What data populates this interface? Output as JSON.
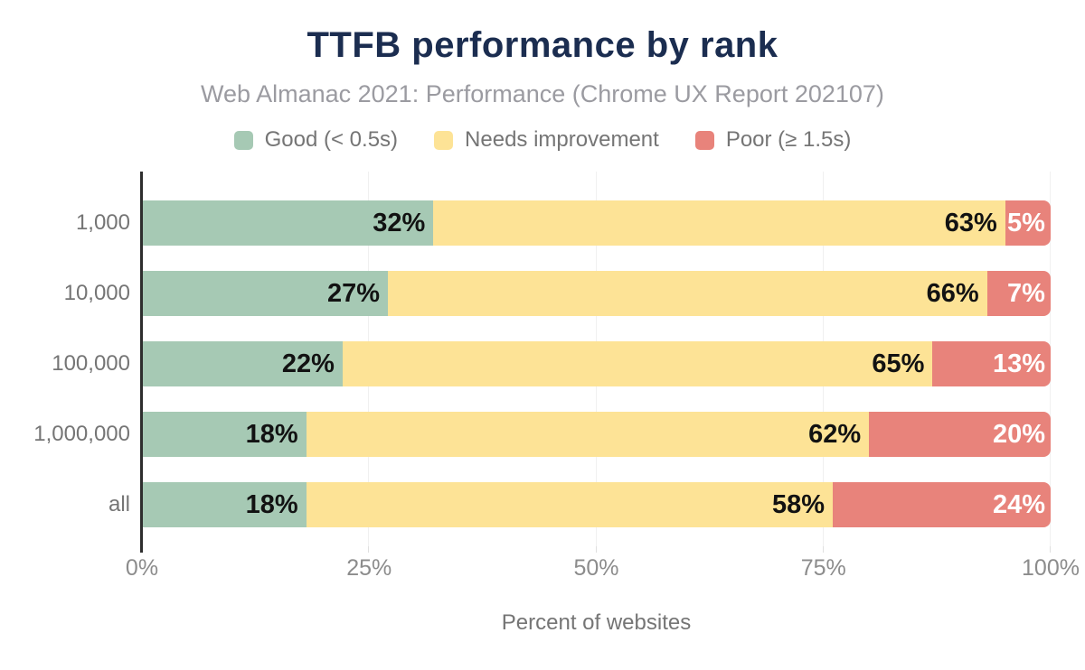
{
  "chart_data": {
    "type": "bar",
    "orientation": "horizontal",
    "stacked": true,
    "title": "TTFB performance by rank",
    "subtitle": "Web Almanac 2021: Performance (Chrome UX Report 202107)",
    "categories": [
      "1,000",
      "10,000",
      "100,000",
      "1,000,000",
      "all"
    ],
    "series": [
      {
        "key": "good",
        "name": "Good (< 0.5s)",
        "color": "#a6c9b4",
        "label_color": "#121212",
        "values": [
          32,
          27,
          22,
          18,
          18
        ]
      },
      {
        "key": "needs-improvement",
        "name": "Needs improvement",
        "color": "#fde396",
        "label_color": "#121212",
        "values": [
          63,
          66,
          65,
          62,
          58
        ]
      },
      {
        "key": "poor",
        "name": "Poor (≥ 1.5s)",
        "color": "#e8837b",
        "label_color": "#ffffff",
        "values": [
          5,
          7,
          13,
          20,
          24
        ]
      }
    ],
    "xlabel": "Percent of websites",
    "x_ticks": [
      "0%",
      "25%",
      "50%",
      "75%",
      "100%"
    ],
    "xlim": [
      0,
      100
    ],
    "grid": true,
    "legend_position": "top",
    "value_suffix": "%"
  }
}
